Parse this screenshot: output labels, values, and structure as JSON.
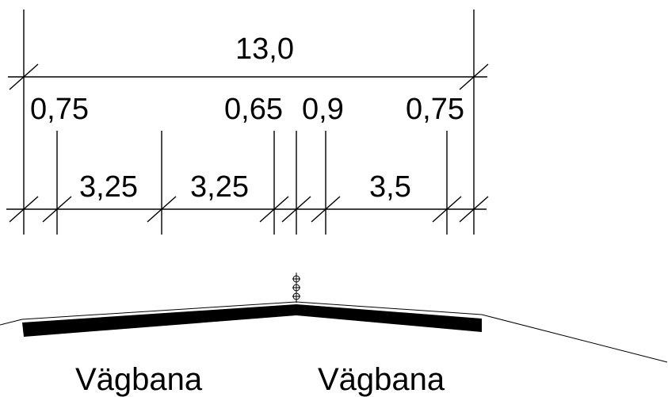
{
  "dimensions": {
    "total": "13,0",
    "top_row": [
      "0,75",
      "0,65",
      "0,9",
      "0,75"
    ],
    "bottom_row": [
      "3,25",
      "3,25",
      "3,5"
    ]
  },
  "labels": {
    "left_lane": "Vägbana",
    "right_lane": "Vägbana"
  },
  "icons": {
    "median_barrier": "barrier-posts-icon"
  },
  "colors": {
    "ink": "#000000",
    "background": "#ffffff"
  }
}
